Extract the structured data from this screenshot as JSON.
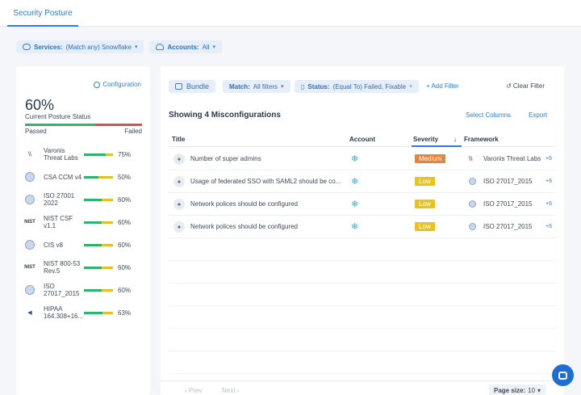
{
  "header": {
    "tab": "Security Posture"
  },
  "filters": {
    "services": {
      "label": "Services:",
      "value": "(Match any) Snowflake"
    },
    "accounts": {
      "label": "Accounts:",
      "value": "All"
    }
  },
  "posture": {
    "configuration_link": "Configuration",
    "percent": "60%",
    "percent_value": 60,
    "label": "Current Posture Status",
    "passed": "Passed",
    "failed": "Failed",
    "frameworks": [
      {
        "name": "Varonis Threat Labs",
        "percent": "75%",
        "value": 75,
        "icon": "varonis-icon"
      },
      {
        "name": "CSA CCM v4",
        "percent": "50%",
        "value": 50,
        "icon": "csa-icon"
      },
      {
        "name": "ISO 27001 2022",
        "percent": "60%",
        "value": 60,
        "icon": "iso-icon"
      },
      {
        "name": "NIST CSF v1.1",
        "percent": "60%",
        "value": 60,
        "icon": "nist-icon"
      },
      {
        "name": "CIS v8",
        "percent": "60%",
        "value": 60,
        "icon": "cis-icon"
      },
      {
        "name": "NIST 800-53 Rev.5",
        "percent": "60%",
        "value": 60,
        "icon": "nist-icon"
      },
      {
        "name": "ISO 27017_2015",
        "percent": "60%",
        "value": 60,
        "icon": "iso-icon"
      },
      {
        "name": "HIPAA 164.308+16...",
        "percent": "63%",
        "value": 63,
        "icon": "hipaa-icon"
      }
    ]
  },
  "toolbar": {
    "bundle": "Bundle",
    "match": {
      "label": "Match:",
      "value": "All filters"
    },
    "status": {
      "label": "Status:",
      "value": "(Equal To) Failed, Fixable"
    },
    "add_filter": "+ Add Filter",
    "clear_filter": "Clear Filter"
  },
  "table": {
    "heading": "Showing 4 Misconfigurations",
    "select_columns": "Select Columns",
    "export": "Export",
    "columns": {
      "title": "Title",
      "account": "Account",
      "severity": "Severity",
      "framework": "Framework"
    },
    "rows": [
      {
        "title": "Number of super admins",
        "severity": "Medium",
        "severity_color": "#e8833a",
        "framework": "Varonis Threat Labs",
        "more": "+6"
      },
      {
        "title": "Usage of federated SSO with SAML2 should be co...",
        "severity": "Low",
        "severity_color": "#e8c21f",
        "framework": "ISO 27017_2015",
        "more": "+6"
      },
      {
        "title": "Network polices should be configured",
        "severity": "Low",
        "severity_color": "#e8c21f",
        "framework": "ISO 27017_2015",
        "more": "+6"
      },
      {
        "title": "Network polices should be configured",
        "severity": "Low",
        "severity_color": "#e8c21f",
        "framework": "ISO 27017_2015",
        "more": "+6"
      }
    ]
  },
  "pager": {
    "prev": "Prev",
    "next": "Next",
    "page_size_label": "Page size:",
    "page_size": "10"
  }
}
